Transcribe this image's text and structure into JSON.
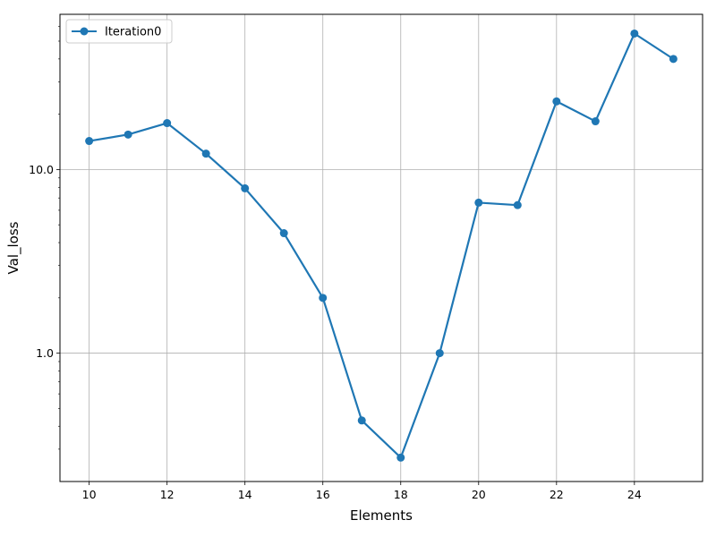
{
  "chart_data": {
    "type": "line",
    "title": "",
    "xlabel": "Elements",
    "ylabel": "Val_loss",
    "x_scale": "linear",
    "y_scale": "log",
    "xlim": [
      9.25,
      25.75
    ],
    "ylim": [
      0.2,
      70
    ],
    "x_ticks": [
      10,
      12,
      14,
      16,
      18,
      20,
      22,
      24
    ],
    "x_tick_labels": [
      "10",
      "12",
      "14",
      "16",
      "18",
      "20",
      "22",
      "24"
    ],
    "y_ticks": [
      1.0,
      10.0
    ],
    "y_tick_labels": [
      "1.0",
      "10.0"
    ],
    "grid": true,
    "legend_position": "top-left",
    "series": [
      {
        "name": "Iteration0",
        "color": "#1f77b4",
        "marker": "circle",
        "x": [
          10,
          11,
          12,
          13,
          14,
          15,
          16,
          17,
          18,
          19,
          20,
          21,
          22,
          23,
          24,
          25
        ],
        "y": [
          14.3,
          15.5,
          17.9,
          12.2,
          7.9,
          4.5,
          2.0,
          0.43,
          0.27,
          1.0,
          6.6,
          6.4,
          23.5,
          18.3,
          55.0,
          40.0
        ]
      }
    ]
  }
}
